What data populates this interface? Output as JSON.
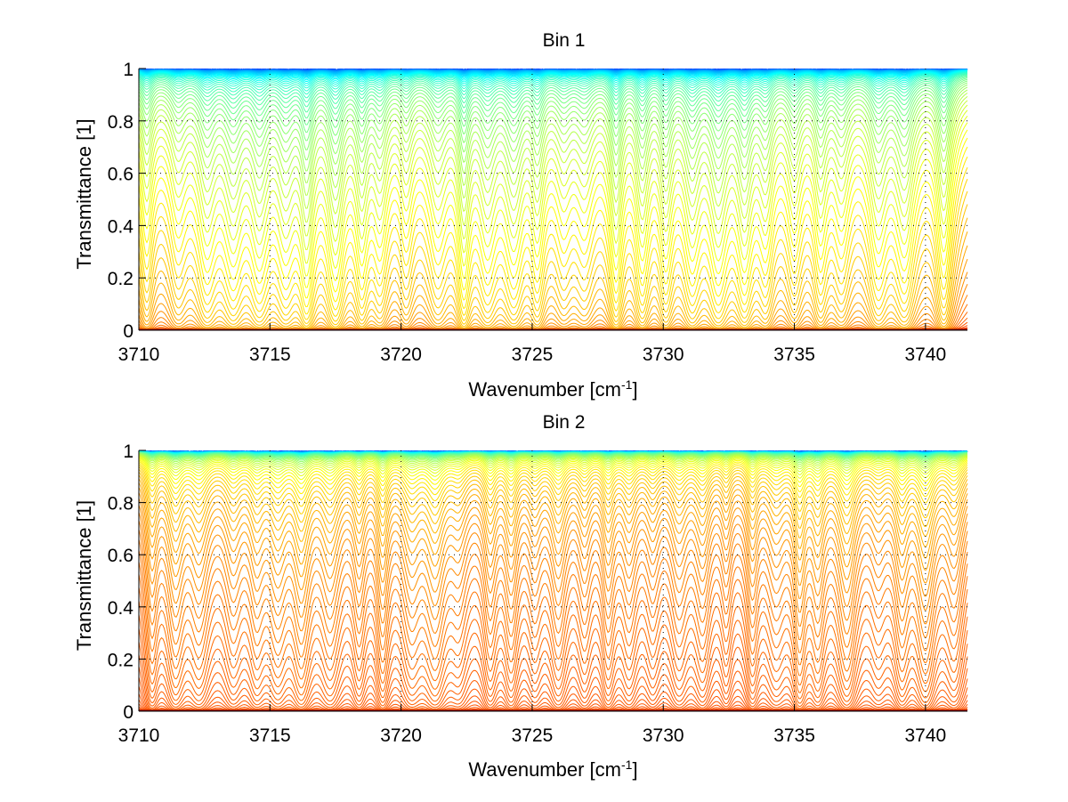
{
  "chart_data": [
    {
      "type": "line",
      "title": "Bin 1",
      "xlabel": "Wavenumber [cm",
      "xlabel_sup": "-1",
      "xlabel_suffix": "]",
      "ylabel": "Transmittance [1]",
      "xlim": [
        3710,
        3741.6
      ],
      "ylim": [
        0,
        1
      ],
      "xticks": [
        3710,
        3715,
        3720,
        3725,
        3730,
        3735,
        3740
      ],
      "xtick_labels": [
        "3710",
        "3715",
        "3720",
        "3725",
        "3730",
        "3735",
        "3740"
      ],
      "yticks": [
        0,
        0.2,
        0.4,
        0.6,
        0.8,
        1
      ],
      "ytick_labels": [
        "0",
        "0.2",
        "0.4",
        "0.6",
        "0.8",
        "1"
      ],
      "grid": true,
      "colormap": "jet",
      "series_count": 90,
      "line_centers": [
        3710.3,
        3711.5,
        3712.6,
        3713.6,
        3714.6,
        3715.6,
        3716.4,
        3717.5,
        3718.5,
        3719.2,
        3720.2,
        3721.4,
        3722.4,
        3723.3,
        3724.3,
        3725.2,
        3726.2,
        3727.0,
        3728.2,
        3729.2,
        3730.1,
        3731.1,
        3732.1,
        3733.1,
        3733.9,
        3735.0,
        3736.0,
        3736.8,
        3738.2,
        3739.2,
        3740.7
      ],
      "description": "Family of transmittance spectra for increasing optical depth"
    },
    {
      "type": "line",
      "title": "Bin 2",
      "xlabel": "Wavenumber [cm",
      "xlabel_sup": "-1",
      "xlabel_suffix": "]",
      "ylabel": "Transmittance [1]",
      "xlim": [
        3710,
        3741.6
      ],
      "ylim": [
        0,
        1
      ],
      "xticks": [
        3710,
        3715,
        3720,
        3725,
        3730,
        3735,
        3740
      ],
      "xtick_labels": [
        "3710",
        "3715",
        "3720",
        "3725",
        "3730",
        "3735",
        "3740"
      ],
      "yticks": [
        0,
        0.2,
        0.4,
        0.6,
        0.8,
        1
      ],
      "ytick_labels": [
        "0",
        "0.2",
        "0.4",
        "0.6",
        "0.8",
        "1"
      ],
      "grid": true,
      "colormap": "jet",
      "series_count": 90,
      "line_centers": [
        3710.5,
        3711.4,
        3712.3,
        3713.6,
        3714.5,
        3715.3,
        3716.2,
        3717.3,
        3718.4,
        3719.3,
        3720.4,
        3721.3,
        3722.2,
        3723.4,
        3724.2,
        3725.1,
        3726.0,
        3727.0,
        3727.9,
        3728.7,
        3729.6,
        3730.6,
        3731.5,
        3732.4,
        3733.4,
        3734.3,
        3735.2,
        3735.9,
        3737.0,
        3738.2,
        3739.1,
        3740.0,
        3741.1
      ],
      "description": "Family of transmittance spectra for increasing optical depth"
    }
  ]
}
